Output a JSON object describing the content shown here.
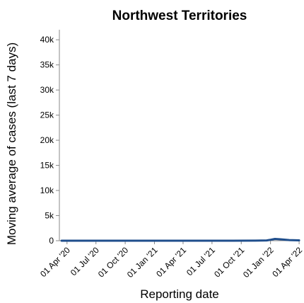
{
  "chart_data": {
    "type": "line",
    "title": "Northwest Territories",
    "xlabel": "Reporting date",
    "ylabel": "Moving average of cases (last 7 days)",
    "grid": false,
    "legend": "none",
    "xlim": [
      "2020-03-08",
      "2022-04-03"
    ],
    "ylim": [
      0,
      42000
    ],
    "x_ticks": [
      {
        "date": "2020-04-01",
        "label": "01 Apr '20"
      },
      {
        "date": "2020-07-01",
        "label": "01 Jul '20"
      },
      {
        "date": "2020-10-01",
        "label": "01 Oct '20"
      },
      {
        "date": "2021-01-01",
        "label": "01 Jan '21"
      },
      {
        "date": "2021-04-01",
        "label": "01 Apr '21"
      },
      {
        "date": "2021-07-01",
        "label": "01 Jul '21"
      },
      {
        "date": "2021-10-01",
        "label": "01 Oct '21"
      },
      {
        "date": "2022-01-01",
        "label": "01 Jan '22"
      },
      {
        "date": "2022-04-01",
        "label": "01 Apr '22"
      }
    ],
    "y_ticks": [
      {
        "value": 0,
        "label": "0"
      },
      {
        "value": 5000,
        "label": "5k"
      },
      {
        "value": 10000,
        "label": "10k"
      },
      {
        "value": 15000,
        "label": "15k"
      },
      {
        "value": 20000,
        "label": "20k"
      },
      {
        "value": 25000,
        "label": "25k"
      },
      {
        "value": 30000,
        "label": "30k"
      },
      {
        "value": 35000,
        "label": "35k"
      },
      {
        "value": 40000,
        "label": "40k"
      }
    ],
    "series": [
      {
        "color": "#1f4e8c",
        "x": [
          "2020-03-15",
          "2020-06-01",
          "2020-09-01",
          "2020-12-01",
          "2021-03-01",
          "2021-06-01",
          "2021-09-01",
          "2021-11-15",
          "2021-12-20",
          "2022-01-01",
          "2022-01-15",
          "2022-02-01",
          "2022-03-01",
          "2022-04-01"
        ],
        "y": [
          0,
          0,
          0,
          0,
          0,
          0,
          0,
          10,
          60,
          180,
          350,
          280,
          120,
          70
        ]
      }
    ]
  }
}
